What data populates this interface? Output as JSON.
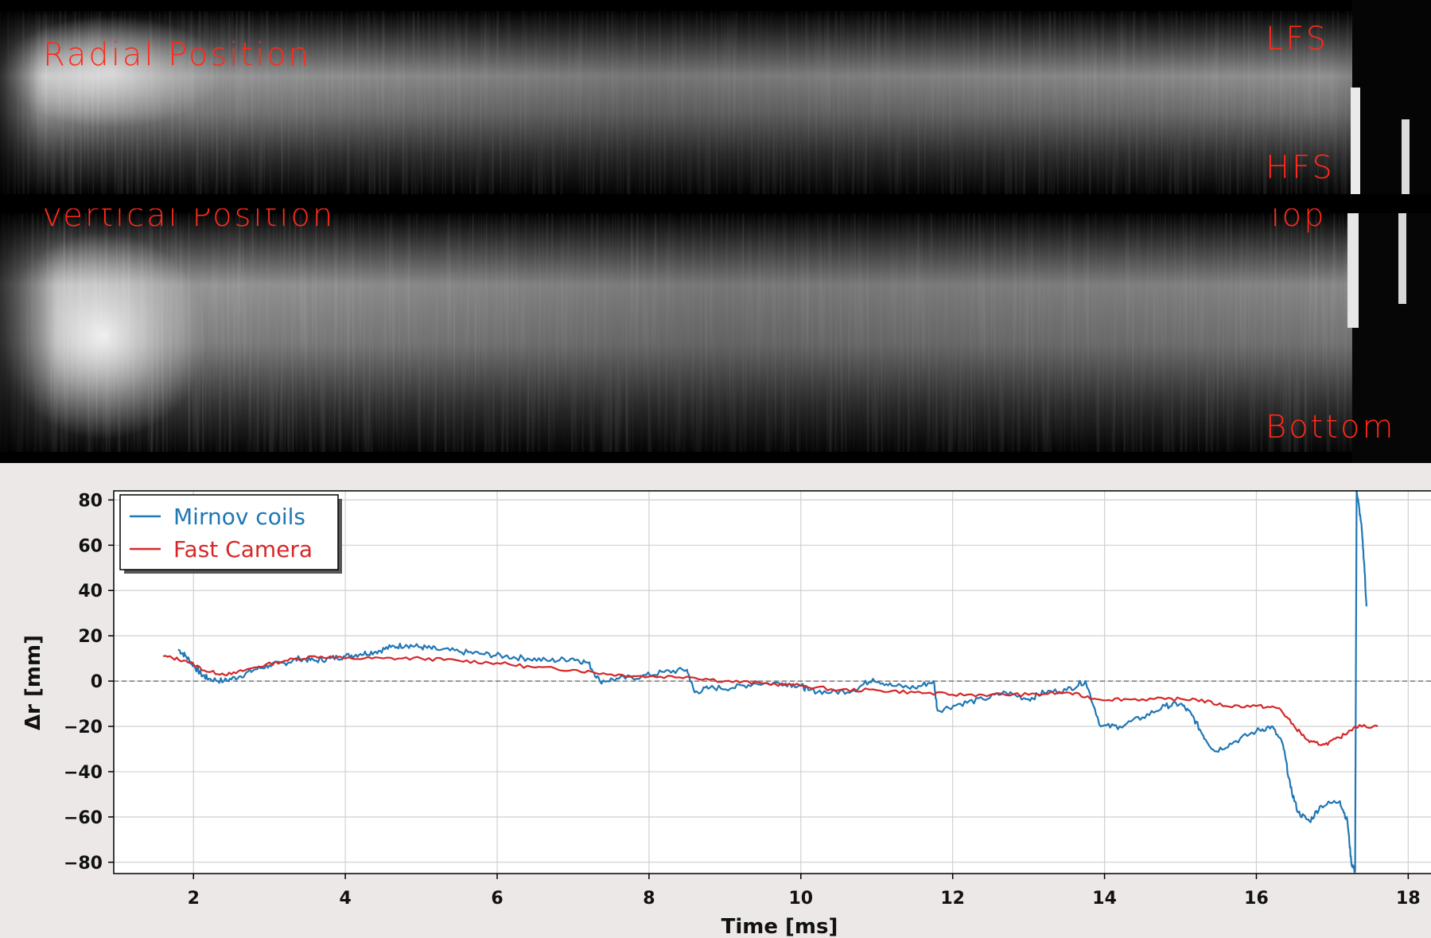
{
  "panels": {
    "radial": {
      "title": "Radial Position",
      "upper": "LFS",
      "lower": "HFS"
    },
    "vertical": {
      "title": "Vertical Position",
      "upper": "Top",
      "lower": "Bottom"
    }
  },
  "chart_data": {
    "type": "line",
    "title": "",
    "xlabel": "Time [ms]",
    "ylabel": "Δr [mm]",
    "xlim": [
      0.95,
      18.3
    ],
    "ylim": [
      -85,
      84
    ],
    "xticks": [
      2,
      4,
      6,
      8,
      10,
      12,
      14,
      16,
      18
    ],
    "xtick_labels": [
      "2",
      "4",
      "6",
      "8",
      "10",
      "12",
      "14",
      "16",
      "18"
    ],
    "yticks": [
      -80,
      -60,
      -40,
      -20,
      0,
      20,
      40,
      60,
      80
    ],
    "ytick_labels": [
      "−80",
      "−60",
      "−40",
      "−20",
      "0",
      "20",
      "40",
      "60",
      "80"
    ],
    "grid": true,
    "zero_line": true,
    "legend_position": "top-left",
    "series": [
      {
        "name": "Mirnov coils",
        "color": "#1f77b4",
        "points": [
          [
            1.8,
            14
          ],
          [
            1.9,
            11
          ],
          [
            2.0,
            7
          ],
          [
            2.1,
            3
          ],
          [
            2.2,
            1
          ],
          [
            2.4,
            0
          ],
          [
            2.6,
            2
          ],
          [
            2.8,
            5
          ],
          [
            3.0,
            7
          ],
          [
            3.2,
            8
          ],
          [
            3.4,
            10
          ],
          [
            3.6,
            9
          ],
          [
            3.8,
            10
          ],
          [
            4.0,
            11
          ],
          [
            4.2,
            12
          ],
          [
            4.4,
            13
          ],
          [
            4.6,
            15
          ],
          [
            4.8,
            16
          ],
          [
            5.0,
            15
          ],
          [
            5.2,
            14
          ],
          [
            5.5,
            13
          ],
          [
            5.8,
            12
          ],
          [
            6.1,
            11
          ],
          [
            6.4,
            10
          ],
          [
            6.7,
            9
          ],
          [
            7.0,
            10
          ],
          [
            7.2,
            8
          ],
          [
            7.35,
            0
          ],
          [
            7.6,
            1
          ],
          [
            7.9,
            2
          ],
          [
            8.2,
            4
          ],
          [
            8.5,
            5
          ],
          [
            8.6,
            -5
          ],
          [
            8.8,
            -3
          ],
          [
            9.1,
            -3
          ],
          [
            9.4,
            -1
          ],
          [
            9.8,
            -1
          ],
          [
            10.0,
            -2
          ],
          [
            10.1,
            -4
          ],
          [
            10.4,
            -5
          ],
          [
            10.7,
            -4
          ],
          [
            10.95,
            1
          ],
          [
            11.2,
            -2
          ],
          [
            11.5,
            -3
          ],
          [
            11.75,
            0
          ],
          [
            11.8,
            -13
          ],
          [
            12.1,
            -10
          ],
          [
            12.4,
            -8
          ],
          [
            12.7,
            -5
          ],
          [
            13.0,
            -8
          ],
          [
            13.2,
            -5
          ],
          [
            13.5,
            -4
          ],
          [
            13.75,
            0
          ],
          [
            13.95,
            -20
          ],
          [
            14.2,
            -20
          ],
          [
            14.5,
            -16
          ],
          [
            14.8,
            -11
          ],
          [
            15.0,
            -10
          ],
          [
            15.15,
            -15
          ],
          [
            15.3,
            -24
          ],
          [
            15.45,
            -31
          ],
          [
            15.7,
            -27
          ],
          [
            16.0,
            -22
          ],
          [
            16.2,
            -20
          ],
          [
            16.35,
            -28
          ],
          [
            16.45,
            -47
          ],
          [
            16.55,
            -58
          ],
          [
            16.7,
            -62
          ],
          [
            16.85,
            -55
          ],
          [
            17.1,
            -53
          ],
          [
            17.2,
            -62
          ],
          [
            17.25,
            -80
          ],
          [
            17.3,
            -84
          ],
          [
            17.32,
            84
          ],
          [
            17.38,
            70
          ],
          [
            17.42,
            52
          ],
          [
            17.45,
            33
          ]
        ]
      },
      {
        "name": "Fast Camera",
        "color": "#d62728",
        "points": [
          [
            1.6,
            11
          ],
          [
            1.9,
            9
          ],
          [
            2.2,
            4
          ],
          [
            2.5,
            3
          ],
          [
            2.8,
            6
          ],
          [
            3.2,
            9
          ],
          [
            3.6,
            11
          ],
          [
            4.0,
            10
          ],
          [
            4.5,
            10
          ],
          [
            5.0,
            10
          ],
          [
            5.5,
            9
          ],
          [
            6.0,
            8
          ],
          [
            6.5,
            6
          ],
          [
            7.0,
            5
          ],
          [
            7.5,
            3
          ],
          [
            8.0,
            2
          ],
          [
            8.5,
            2
          ],
          [
            9.0,
            0
          ],
          [
            9.5,
            -1
          ],
          [
            10.0,
            -2
          ],
          [
            10.5,
            -4
          ],
          [
            11.0,
            -4
          ],
          [
            11.5,
            -5
          ],
          [
            12.0,
            -6
          ],
          [
            12.5,
            -6
          ],
          [
            13.0,
            -6
          ],
          [
            13.5,
            -5
          ],
          [
            13.9,
            -8
          ],
          [
            14.3,
            -8
          ],
          [
            14.8,
            -8
          ],
          [
            15.2,
            -8
          ],
          [
            15.6,
            -11
          ],
          [
            16.0,
            -11
          ],
          [
            16.3,
            -12
          ],
          [
            16.5,
            -20
          ],
          [
            16.7,
            -27
          ],
          [
            16.9,
            -28
          ],
          [
            17.1,
            -25
          ],
          [
            17.3,
            -20
          ],
          [
            17.6,
            -20
          ]
        ]
      }
    ]
  }
}
